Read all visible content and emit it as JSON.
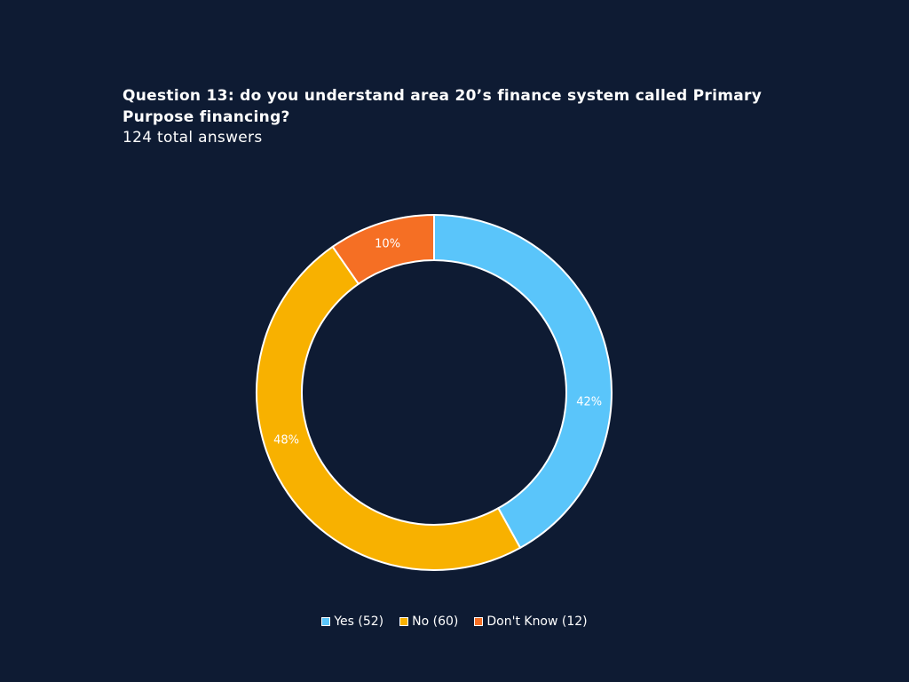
{
  "chart_data": {
    "type": "pie",
    "title": "Question 13: do you understand area 20’s finance system called Primary Purpose financing?",
    "subtitle": "124 total answers",
    "legend_position": "bottom",
    "slices": [
      {
        "label": "Yes (52)",
        "value": 52,
        "percent_label": "42%",
        "color": "#5ac5fa"
      },
      {
        "label": "No (60)",
        "value": 60,
        "percent_label": "48%",
        "color": "#f8b100"
      },
      {
        "label": "Don't Know (12)",
        "value": 12,
        "percent_label": "10%",
        "color": "#f56f24"
      }
    ]
  }
}
